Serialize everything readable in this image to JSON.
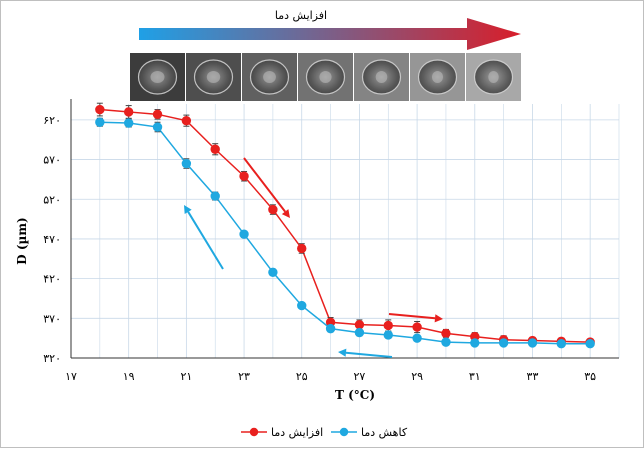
{
  "banner_label": "افزایش دما",
  "chart_data": {
    "type": "line",
    "xlabel": "T (°C)",
    "ylabel": "D (µm)",
    "xlim": [
      17,
      36
    ],
    "ylim": [
      320,
      640
    ],
    "x_ticks": [
      17,
      19,
      21,
      23,
      25,
      27,
      29,
      31,
      33,
      35
    ],
    "y_ticks": [
      320,
      370,
      420,
      470,
      520,
      570,
      620
    ],
    "x_tick_labels": [
      "۱۷",
      "۱۹",
      "۲۱",
      "۲۳",
      "۲۵",
      "۲۷",
      "۲۹",
      "۳۱",
      "۳۳",
      "۳۵"
    ],
    "y_tick_labels": [
      "۳۲۰",
      "۳۷۰",
      "۴۲۰",
      "۴۷۰",
      "۵۲۰",
      "۵۷۰",
      "۶۲۰"
    ],
    "grid": true,
    "legend_position": "bottom",
    "series": [
      {
        "name": "افزایش دما",
        "color": "#e8201e",
        "x": [
          18,
          19,
          20,
          21,
          22,
          23,
          24,
          25,
          26,
          27,
          28,
          29,
          30,
          31,
          32,
          33,
          34,
          35
        ],
        "y": [
          633,
          630,
          627,
          619,
          583,
          549,
          507,
          458,
          365,
          362,
          361,
          359,
          351,
          347,
          343,
          342,
          341,
          340
        ],
        "err": [
          8,
          8,
          6,
          7,
          7,
          6,
          6,
          6,
          6,
          6,
          7,
          7,
          5,
          5,
          5,
          4,
          4,
          4
        ]
      },
      {
        "name": "کاهش دما",
        "color": "#1fa8e0",
        "x": [
          18,
          19,
          20,
          21,
          22,
          23,
          24,
          25,
          26,
          27,
          28,
          29,
          30,
          31,
          32,
          33,
          34,
          35
        ],
        "y": [
          617,
          616,
          611,
          565,
          524,
          476,
          428,
          386,
          357,
          352,
          349,
          345,
          340,
          339,
          339,
          339,
          338,
          338
        ],
        "err": [
          5,
          5,
          6,
          6,
          5,
          4,
          4,
          3,
          4,
          4,
          4,
          3,
          3,
          3,
          3,
          3,
          3,
          3
        ]
      }
    ],
    "annotations": [
      "heating-arrow",
      "heating-arrow",
      "cooling-arrow",
      "cooling-arrow"
    ]
  },
  "colors": {
    "banner_start": "#1fa0e6",
    "banner_end": "#d81e2a",
    "heating_arrow": "#e8201e",
    "cooling_arrow": "#1fa8e0",
    "grid": "#c8d8e8"
  },
  "photos_count": 7
}
